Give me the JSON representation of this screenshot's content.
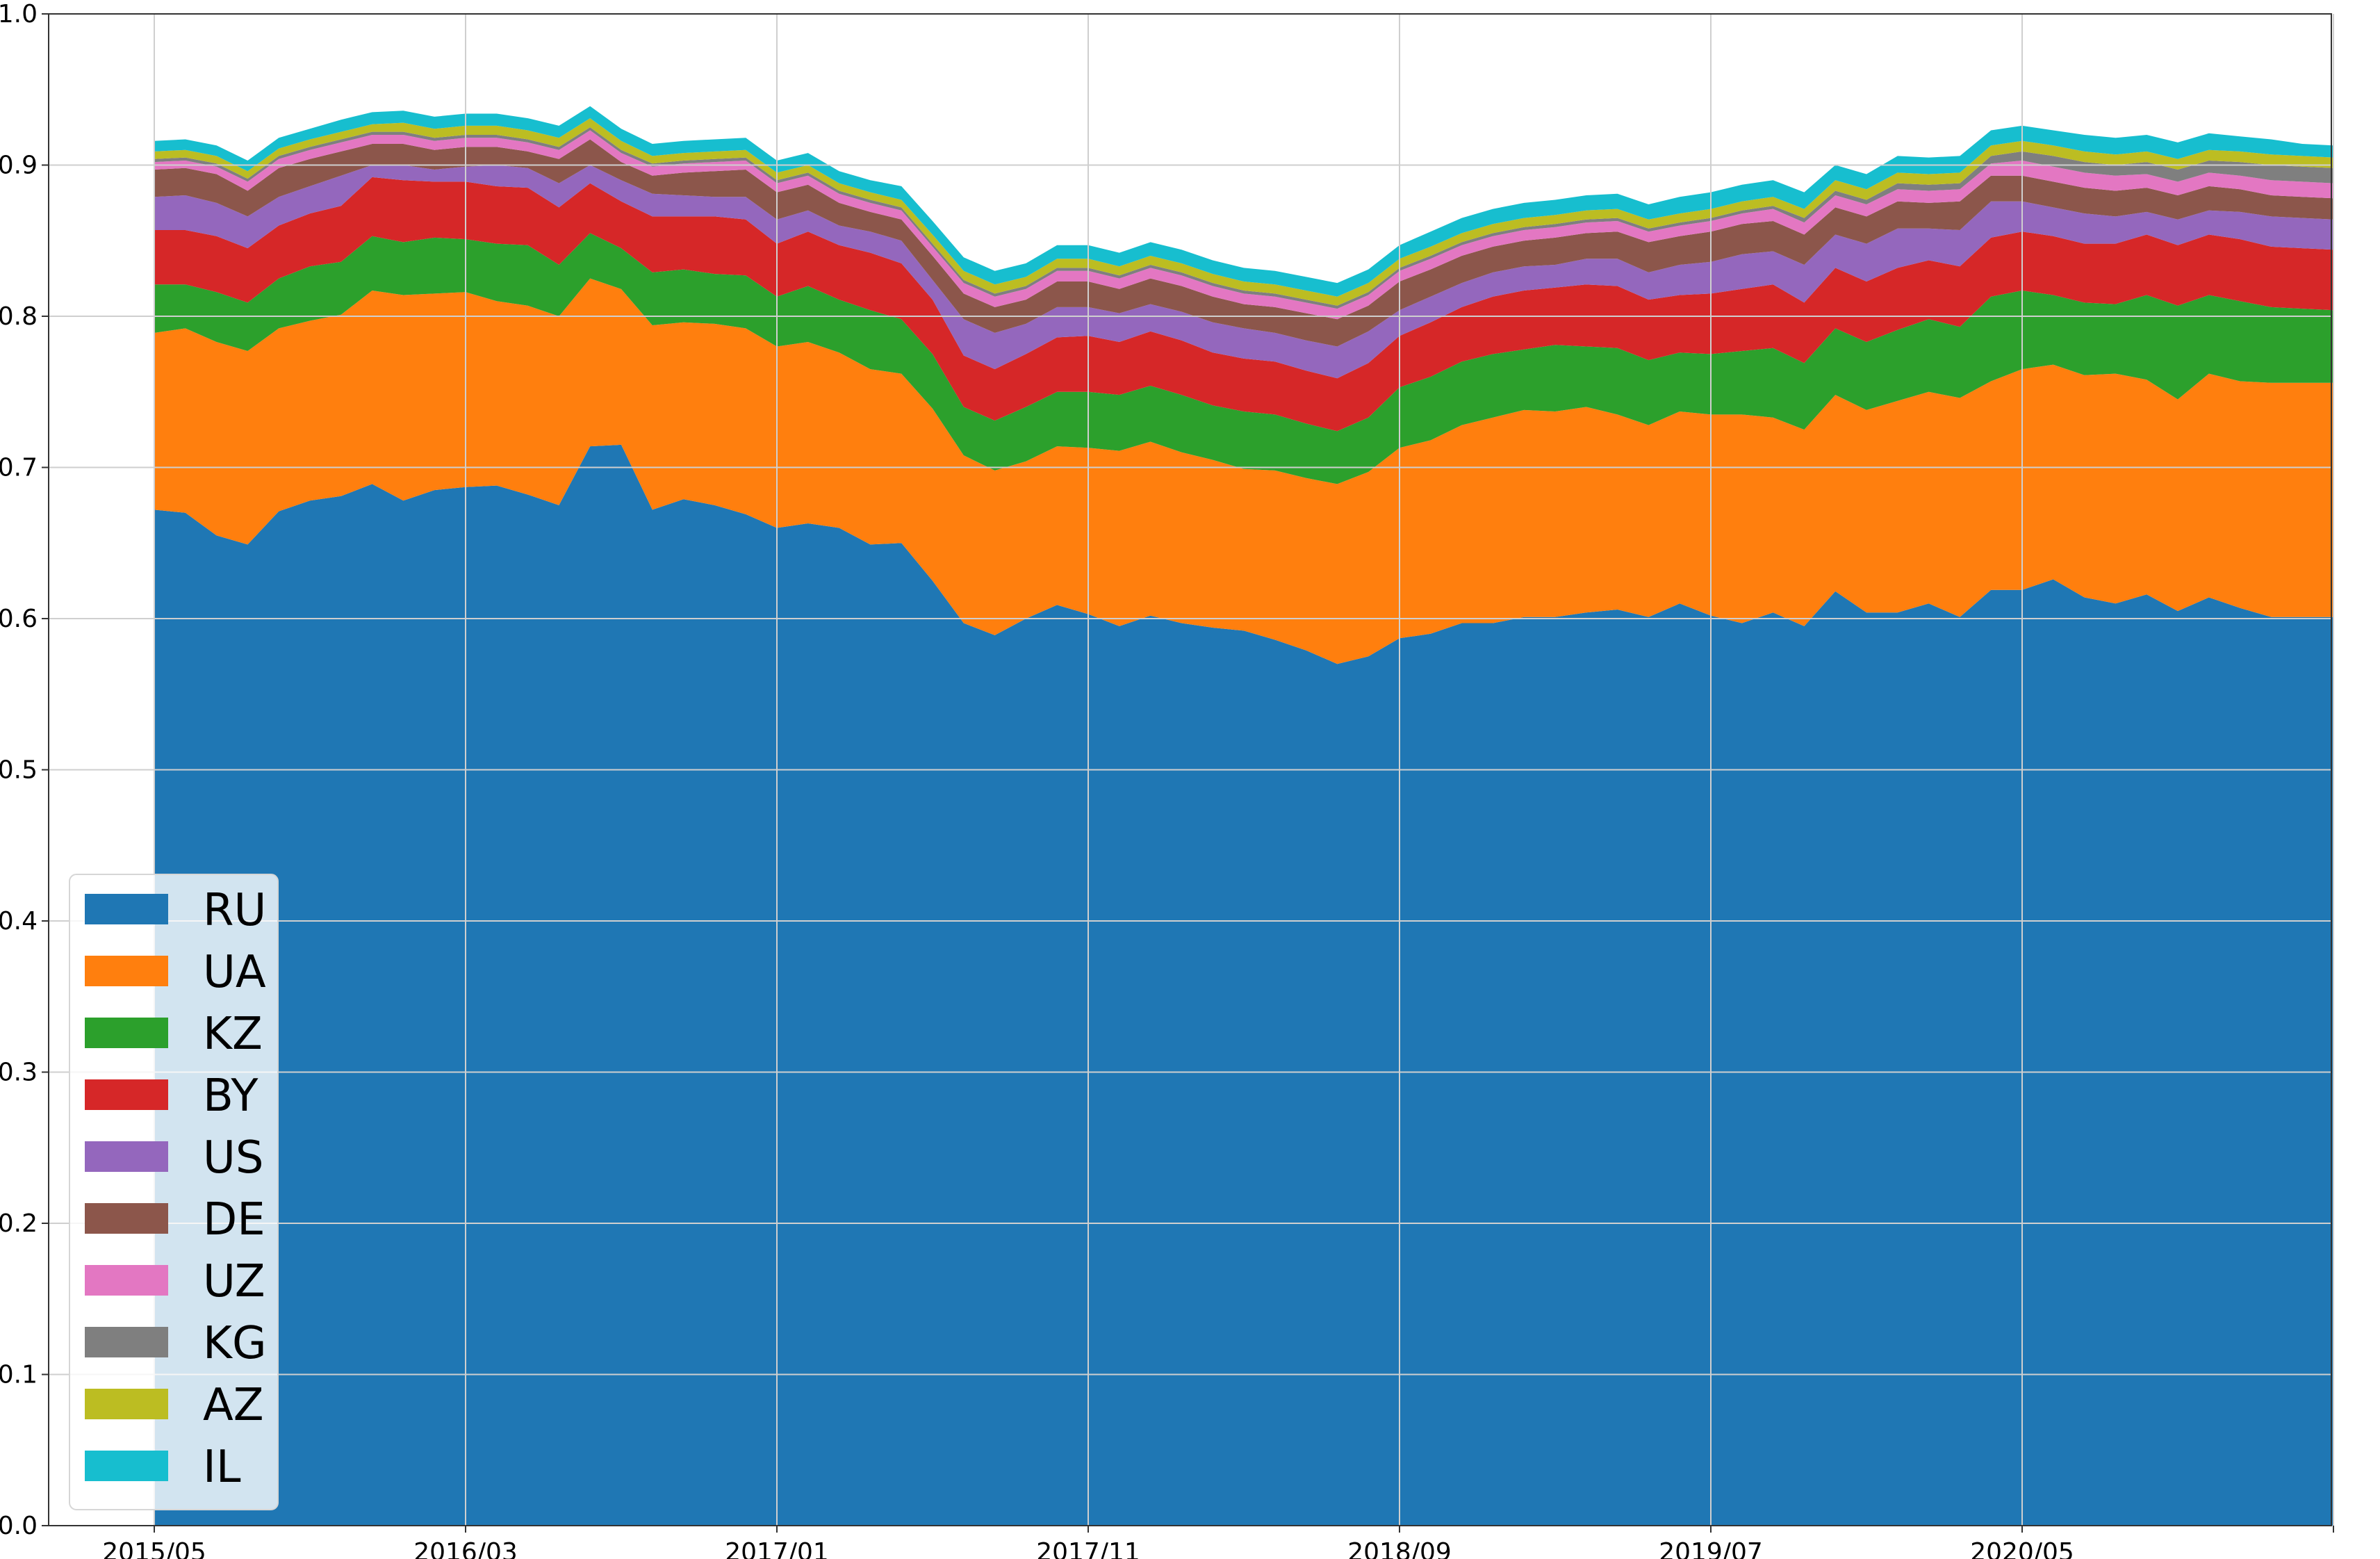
{
  "chart_data": {
    "type": "area",
    "stacked": true,
    "x": [
      "2015/05",
      "2015/06",
      "2015/07",
      "2015/08",
      "2015/09",
      "2015/10",
      "2015/11",
      "2015/12",
      "2016/01",
      "2016/02",
      "2016/03",
      "2016/04",
      "2016/05",
      "2016/06",
      "2016/07",
      "2016/08",
      "2016/09",
      "2016/10",
      "2016/11",
      "2016/12",
      "2017/01",
      "2017/02",
      "2017/03",
      "2017/04",
      "2017/05",
      "2017/06",
      "2017/07",
      "2017/08",
      "2017/09",
      "2017/10",
      "2017/11",
      "2017/12",
      "2018/01",
      "2018/02",
      "2018/03",
      "2018/04",
      "2018/05",
      "2018/06",
      "2018/07",
      "2018/08",
      "2018/09",
      "2018/10",
      "2018/11",
      "2018/12",
      "2019/01",
      "2019/02",
      "2019/03",
      "2019/04",
      "2019/05",
      "2019/06",
      "2019/07",
      "2019/08",
      "2019/09",
      "2019/10",
      "2019/11",
      "2019/12",
      "2020/01",
      "2020/02",
      "2020/03",
      "2020/04",
      "2020/05",
      "2020/06",
      "2020/07",
      "2020/08",
      "2020/09",
      "2020/10",
      "2020/11",
      "2020/12",
      "2021/01",
      "2021/02",
      "2021/03"
    ],
    "x_ticks": [
      "2015/05",
      "2016/03",
      "2017/01",
      "2017/11",
      "2018/09",
      "2019/07",
      "2020/05"
    ],
    "ylim": [
      0,
      1.0
    ],
    "y_ticks": [
      "0.0",
      "0.1",
      "0.2",
      "0.3",
      "0.4",
      "0.5",
      "0.6",
      "0.7",
      "0.8",
      "0.9",
      "1.0"
    ],
    "grid": true,
    "legend_position": "bottom-left",
    "series": [
      {
        "name": "RU",
        "color": "#1f77b4",
        "values": [
          0.672,
          0.67,
          0.655,
          0.649,
          0.671,
          0.678,
          0.681,
          0.689,
          0.678,
          0.685,
          0.687,
          0.688,
          0.682,
          0.675,
          0.714,
          0.715,
          0.672,
          0.679,
          0.675,
          0.669,
          0.66,
          0.663,
          0.66,
          0.649,
          0.65,
          0.625,
          0.597,
          0.589,
          0.6,
          0.609,
          0.603,
          0.595,
          0.602,
          0.597,
          0.594,
          0.592,
          0.586,
          0.579,
          0.57,
          0.575,
          0.587,
          0.59,
          0.597,
          0.597,
          0.601,
          0.601,
          0.604,
          0.606,
          0.601,
          0.61,
          0.602,
          0.597,
          0.604,
          0.595,
          0.618,
          0.604,
          0.604,
          0.61,
          0.601,
          0.619,
          0.619,
          0.626,
          0.614,
          0.61,
          0.616,
          0.605,
          0.614,
          0.607,
          0.601,
          0.601,
          0.601
        ]
      },
      {
        "name": "UA",
        "color": "#ff7f0e",
        "values": [
          0.117,
          0.122,
          0.128,
          0.128,
          0.121,
          0.119,
          0.12,
          0.128,
          0.136,
          0.13,
          0.129,
          0.122,
          0.125,
          0.125,
          0.111,
          0.103,
          0.122,
          0.117,
          0.12,
          0.123,
          0.12,
          0.12,
          0.116,
          0.116,
          0.112,
          0.114,
          0.111,
          0.109,
          0.104,
          0.105,
          0.11,
          0.116,
          0.115,
          0.113,
          0.111,
          0.107,
          0.112,
          0.114,
          0.119,
          0.122,
          0.126,
          0.128,
          0.131,
          0.136,
          0.137,
          0.136,
          0.136,
          0.129,
          0.127,
          0.127,
          0.133,
          0.138,
          0.129,
          0.13,
          0.13,
          0.134,
          0.14,
          0.14,
          0.145,
          0.138,
          0.146,
          0.142,
          0.147,
          0.152,
          0.142,
          0.14,
          0.148,
          0.15,
          0.155,
          0.155,
          0.155
        ]
      },
      {
        "name": "KZ",
        "color": "#2ca02c",
        "values": [
          0.032,
          0.029,
          0.033,
          0.032,
          0.033,
          0.036,
          0.035,
          0.036,
          0.035,
          0.037,
          0.035,
          0.038,
          0.04,
          0.034,
          0.03,
          0.027,
          0.035,
          0.035,
          0.033,
          0.035,
          0.033,
          0.037,
          0.035,
          0.039,
          0.036,
          0.036,
          0.032,
          0.033,
          0.036,
          0.036,
          0.037,
          0.037,
          0.037,
          0.038,
          0.036,
          0.038,
          0.037,
          0.036,
          0.035,
          0.036,
          0.04,
          0.042,
          0.042,
          0.042,
          0.04,
          0.044,
          0.04,
          0.044,
          0.043,
          0.039,
          0.04,
          0.042,
          0.046,
          0.044,
          0.044,
          0.045,
          0.047,
          0.048,
          0.047,
          0.056,
          0.052,
          0.046,
          0.048,
          0.046,
          0.056,
          0.062,
          0.052,
          0.053,
          0.05,
          0.049,
          0.048
        ]
      },
      {
        "name": "BY",
        "color": "#d62728",
        "values": [
          0.036,
          0.036,
          0.037,
          0.036,
          0.035,
          0.035,
          0.037,
          0.039,
          0.041,
          0.037,
          0.038,
          0.038,
          0.038,
          0.038,
          0.033,
          0.031,
          0.037,
          0.035,
          0.038,
          0.037,
          0.035,
          0.036,
          0.036,
          0.038,
          0.037,
          0.036,
          0.034,
          0.034,
          0.035,
          0.036,
          0.037,
          0.035,
          0.036,
          0.036,
          0.035,
          0.035,
          0.035,
          0.035,
          0.035,
          0.036,
          0.034,
          0.036,
          0.036,
          0.038,
          0.039,
          0.038,
          0.041,
          0.041,
          0.04,
          0.038,
          0.04,
          0.041,
          0.042,
          0.04,
          0.04,
          0.04,
          0.041,
          0.039,
          0.04,
          0.039,
          0.039,
          0.039,
          0.039,
          0.04,
          0.04,
          0.04,
          0.04,
          0.041,
          0.04,
          0.04,
          0.04
        ]
      },
      {
        "name": "US",
        "color": "#9467bd",
        "values": [
          0.022,
          0.023,
          0.022,
          0.021,
          0.019,
          0.018,
          0.02,
          0.008,
          0.01,
          0.008,
          0.01,
          0.014,
          0.013,
          0.016,
          0.012,
          0.014,
          0.015,
          0.014,
          0.013,
          0.015,
          0.016,
          0.014,
          0.013,
          0.014,
          0.015,
          0.013,
          0.024,
          0.024,
          0.02,
          0.02,
          0.019,
          0.019,
          0.018,
          0.019,
          0.02,
          0.02,
          0.019,
          0.02,
          0.021,
          0.021,
          0.017,
          0.017,
          0.016,
          0.016,
          0.016,
          0.015,
          0.017,
          0.018,
          0.018,
          0.02,
          0.021,
          0.023,
          0.022,
          0.025,
          0.022,
          0.025,
          0.026,
          0.021,
          0.024,
          0.024,
          0.02,
          0.019,
          0.02,
          0.018,
          0.015,
          0.017,
          0.016,
          0.018,
          0.02,
          0.02,
          0.02
        ]
      },
      {
        "name": "DE",
        "color": "#8c564b",
        "values": [
          0.018,
          0.018,
          0.019,
          0.017,
          0.019,
          0.018,
          0.016,
          0.014,
          0.014,
          0.013,
          0.013,
          0.012,
          0.011,
          0.016,
          0.017,
          0.012,
          0.012,
          0.015,
          0.017,
          0.018,
          0.018,
          0.017,
          0.015,
          0.013,
          0.014,
          0.016,
          0.017,
          0.017,
          0.016,
          0.017,
          0.017,
          0.016,
          0.017,
          0.017,
          0.017,
          0.016,
          0.017,
          0.018,
          0.018,
          0.017,
          0.019,
          0.018,
          0.018,
          0.017,
          0.017,
          0.018,
          0.017,
          0.018,
          0.02,
          0.019,
          0.02,
          0.02,
          0.02,
          0.02,
          0.018,
          0.018,
          0.018,
          0.017,
          0.019,
          0.017,
          0.017,
          0.017,
          0.017,
          0.017,
          0.016,
          0.016,
          0.016,
          0.015,
          0.014,
          0.014,
          0.014
        ]
      },
      {
        "name": "UZ",
        "color": "#e377c2",
        "values": [
          0.005,
          0.005,
          0.005,
          0.006,
          0.006,
          0.006,
          0.006,
          0.006,
          0.006,
          0.006,
          0.006,
          0.006,
          0.006,
          0.006,
          0.006,
          0.006,
          0.006,
          0.006,
          0.006,
          0.006,
          0.006,
          0.006,
          0.006,
          0.006,
          0.006,
          0.006,
          0.007,
          0.007,
          0.007,
          0.007,
          0.007,
          0.007,
          0.007,
          0.007,
          0.007,
          0.007,
          0.007,
          0.007,
          0.007,
          0.007,
          0.007,
          0.007,
          0.007,
          0.007,
          0.007,
          0.007,
          0.007,
          0.007,
          0.007,
          0.007,
          0.007,
          0.007,
          0.008,
          0.008,
          0.008,
          0.008,
          0.008,
          0.008,
          0.008,
          0.008,
          0.01,
          0.01,
          0.01,
          0.01,
          0.009,
          0.009,
          0.009,
          0.009,
          0.01,
          0.01,
          0.01
        ]
      },
      {
        "name": "KG",
        "color": "#7f7f7f",
        "values": [
          0.002,
          0.002,
          0.002,
          0.002,
          0.002,
          0.002,
          0.002,
          0.002,
          0.002,
          0.002,
          0.002,
          0.002,
          0.002,
          0.002,
          0.002,
          0.002,
          0.002,
          0.002,
          0.002,
          0.002,
          0.002,
          0.002,
          0.002,
          0.002,
          0.002,
          0.002,
          0.002,
          0.002,
          0.002,
          0.002,
          0.002,
          0.002,
          0.002,
          0.002,
          0.002,
          0.002,
          0.002,
          0.002,
          0.002,
          0.002,
          0.002,
          0.002,
          0.002,
          0.002,
          0.002,
          0.002,
          0.002,
          0.002,
          0.002,
          0.002,
          0.002,
          0.002,
          0.002,
          0.003,
          0.003,
          0.003,
          0.004,
          0.004,
          0.004,
          0.005,
          0.006,
          0.007,
          0.007,
          0.007,
          0.008,
          0.008,
          0.008,
          0.009,
          0.01,
          0.01,
          0.01
        ]
      },
      {
        "name": "AZ",
        "color": "#bcbd22",
        "values": [
          0.005,
          0.005,
          0.005,
          0.005,
          0.005,
          0.005,
          0.005,
          0.005,
          0.006,
          0.006,
          0.006,
          0.006,
          0.006,
          0.006,
          0.006,
          0.006,
          0.005,
          0.005,
          0.005,
          0.005,
          0.005,
          0.005,
          0.005,
          0.005,
          0.005,
          0.006,
          0.006,
          0.006,
          0.006,
          0.006,
          0.006,
          0.006,
          0.006,
          0.006,
          0.006,
          0.006,
          0.006,
          0.006,
          0.006,
          0.006,
          0.006,
          0.006,
          0.006,
          0.006,
          0.006,
          0.006,
          0.006,
          0.006,
          0.006,
          0.006,
          0.006,
          0.006,
          0.006,
          0.006,
          0.007,
          0.007,
          0.007,
          0.007,
          0.007,
          0.007,
          0.007,
          0.007,
          0.007,
          0.007,
          0.007,
          0.007,
          0.007,
          0.007,
          0.007,
          0.007,
          0.007
        ]
      },
      {
        "name": "IL",
        "color": "#17becf",
        "values": [
          0.007,
          0.007,
          0.007,
          0.007,
          0.007,
          0.007,
          0.008,
          0.008,
          0.008,
          0.008,
          0.008,
          0.008,
          0.008,
          0.008,
          0.008,
          0.008,
          0.008,
          0.008,
          0.008,
          0.008,
          0.008,
          0.008,
          0.008,
          0.008,
          0.009,
          0.009,
          0.009,
          0.009,
          0.009,
          0.009,
          0.009,
          0.009,
          0.009,
          0.009,
          0.009,
          0.009,
          0.009,
          0.009,
          0.009,
          0.009,
          0.009,
          0.01,
          0.01,
          0.01,
          0.01,
          0.01,
          0.01,
          0.01,
          0.01,
          0.011,
          0.011,
          0.011,
          0.011,
          0.011,
          0.01,
          0.01,
          0.011,
          0.011,
          0.011,
          0.01,
          0.01,
          0.01,
          0.011,
          0.011,
          0.011,
          0.011,
          0.011,
          0.01,
          0.01,
          0.008,
          0.008
        ]
      }
    ]
  }
}
